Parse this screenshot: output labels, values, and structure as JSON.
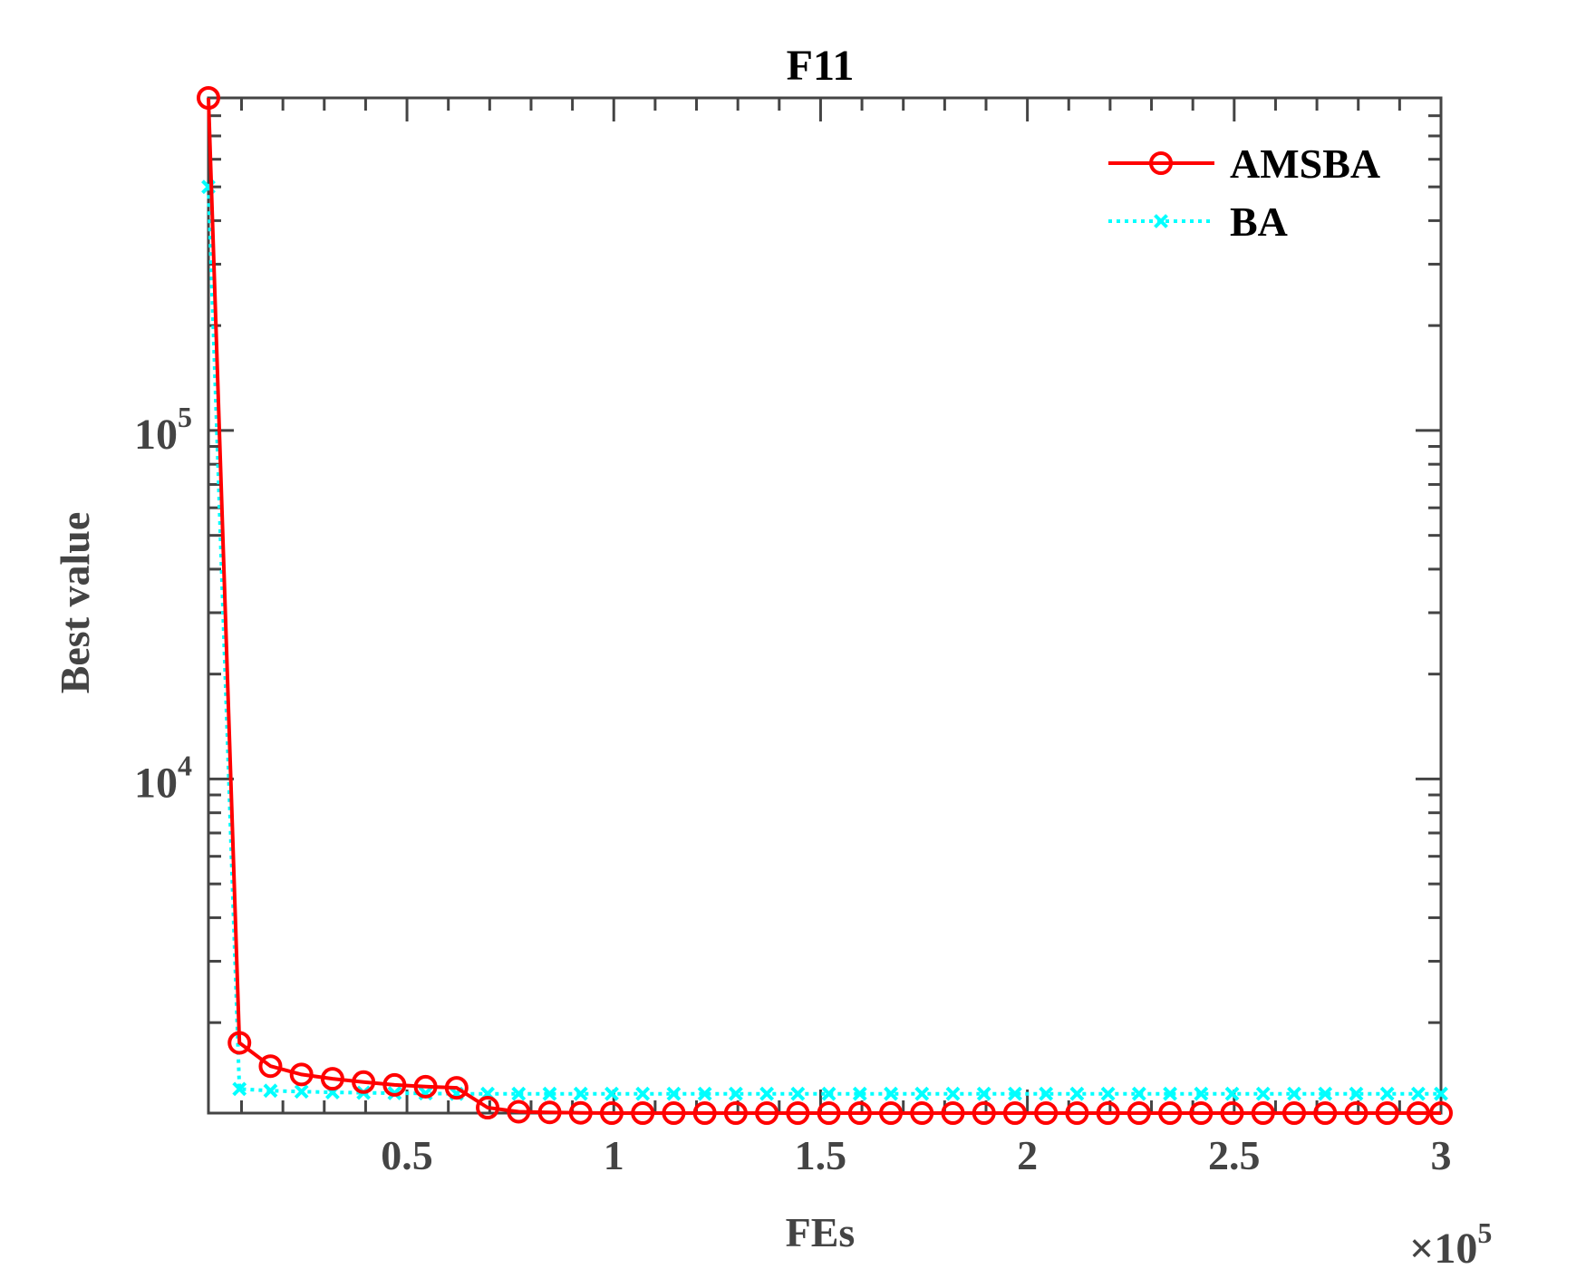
{
  "chart_data": {
    "type": "line",
    "title": "F11",
    "xlabel": "FEs",
    "ylabel": "Best value",
    "x_exponent_label": {
      "base": "×10",
      "exp": "5"
    },
    "xlim": [
      2000,
      300000
    ],
    "ylim": [
      1100,
      900000
    ],
    "y_scale": "log",
    "x_ticks": [
      50000,
      100000,
      150000,
      200000,
      250000,
      300000
    ],
    "x_tick_labels": [
      "0.5",
      "1",
      "1.5",
      "2",
      "2.5",
      "3"
    ],
    "y_ticks": [
      {
        "value": 10000,
        "base": "10",
        "exp": "4"
      },
      {
        "value": 100000,
        "base": "10",
        "exp": "5"
      }
    ],
    "grid": false,
    "legend_position": "top-right",
    "series": [
      {
        "name": "AMSBA",
        "color": "#ff0000",
        "line_style": "solid",
        "marker": "circle",
        "x": [
          2000,
          9500,
          17000,
          24500,
          32000,
          39500,
          47000,
          54500,
          62000,
          69500,
          77000,
          84500,
          92000,
          99500,
          107000,
          114500,
          122000,
          129500,
          137000,
          144500,
          152000,
          159500,
          167000,
          174500,
          182000,
          189500,
          197000,
          204500,
          212000,
          219500,
          227000,
          234500,
          242000,
          249500,
          257000,
          264500,
          272000,
          279500,
          287000,
          294500,
          300000
        ],
        "y": [
          900000,
          1750,
          1500,
          1420,
          1380,
          1350,
          1325,
          1310,
          1300,
          1140,
          1110,
          1105,
          1102,
          1100,
          1100,
          1100,
          1100,
          1100,
          1100,
          1100,
          1100,
          1100,
          1100,
          1100,
          1100,
          1100,
          1100,
          1100,
          1100,
          1100,
          1100,
          1100,
          1100,
          1100,
          1100,
          1100,
          1100,
          1100,
          1100,
          1100,
          1100
        ]
      },
      {
        "name": "BA",
        "color": "#00ffff",
        "line_style": "dotted",
        "marker": "x",
        "x": [
          2000,
          9500,
          17000,
          24500,
          32000,
          39500,
          47000,
          54500,
          62000,
          69500,
          77000,
          84500,
          92000,
          99500,
          107000,
          114500,
          122000,
          129500,
          137000,
          144500,
          152000,
          159500,
          167000,
          174500,
          182000,
          189500,
          197000,
          204500,
          212000,
          219500,
          227000,
          234500,
          242000,
          249500,
          257000,
          264500,
          272000,
          279500,
          287000,
          294500,
          300000
        ],
        "y": [
          500000,
          1290,
          1275,
          1268,
          1262,
          1258,
          1255,
          1253,
          1250,
          1250,
          1250,
          1250,
          1250,
          1250,
          1250,
          1250,
          1250,
          1250,
          1250,
          1250,
          1250,
          1250,
          1250,
          1250,
          1250,
          1250,
          1250,
          1250,
          1250,
          1250,
          1250,
          1250,
          1250,
          1250,
          1250,
          1250,
          1250,
          1250,
          1250,
          1250,
          1250
        ]
      }
    ]
  }
}
